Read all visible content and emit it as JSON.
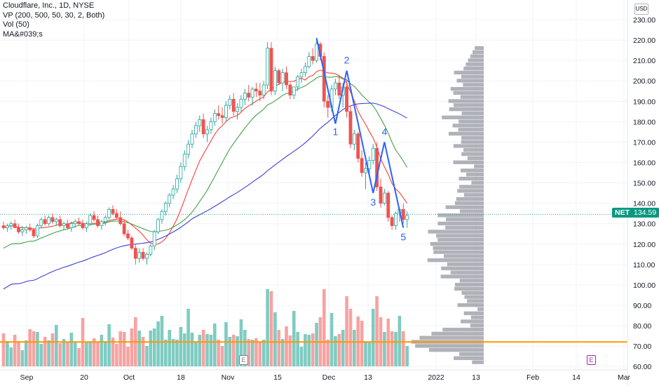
{
  "header": {
    "title": "Cloudflare, Inc., 1D, NYSE",
    "indicators": [
      "VP (200, 500, 50, 30, 2, Both)",
      "Vol (50)",
      "MA&#039;s"
    ]
  },
  "currency": "USD",
  "last_price": {
    "symbol": "NET",
    "value": "134.59",
    "color": "#089981"
  },
  "earnings_badge_label": "E",
  "colors": {
    "up": "#26a69a",
    "down": "#ef5350",
    "ma_fast": "#f44336",
    "ma_mid": "#43a047",
    "ma_slow": "#3f3fd6",
    "wave": "#2962ff",
    "vp": "#9598a1",
    "vol_up": "#7fcbc2",
    "vol_down": "#f6a3a1",
    "poc": "#ff9800"
  },
  "chart_data": {
    "type": "candlestick",
    "title": "Cloudflare, Inc., 1D, NYSE",
    "y_axis": {
      "ticks": [
        60,
        70,
        80,
        90,
        100,
        110,
        120,
        130,
        140,
        150,
        160,
        170,
        180,
        190,
        200,
        210,
        220,
        230
      ],
      "range": [
        58,
        233
      ],
      "unit": "USD"
    },
    "x_axis": {
      "tick_labels": [
        "Sep",
        "20",
        "Oct",
        "18",
        "Nov",
        "15",
        "Dec",
        "13",
        "2022",
        "13",
        "Feb",
        "14",
        "Mar"
      ]
    },
    "candles": [
      [
        129,
        131,
        127,
        128
      ],
      [
        128,
        130,
        126,
        129
      ],
      [
        129,
        131,
        127,
        130
      ],
      [
        130,
        132,
        128,
        128
      ],
      [
        128,
        130,
        125,
        126
      ],
      [
        126,
        129,
        124,
        127
      ],
      [
        127,
        129,
        125,
        128
      ],
      [
        128,
        130,
        126,
        127
      ],
      [
        127,
        128,
        123,
        124
      ],
      [
        124,
        130,
        123,
        129
      ],
      [
        129,
        133,
        128,
        132
      ],
      [
        132,
        134,
        129,
        130
      ],
      [
        130,
        134,
        129,
        133
      ],
      [
        133,
        135,
        130,
        131
      ],
      [
        131,
        133,
        129,
        132
      ],
      [
        132,
        134,
        128,
        129
      ],
      [
        129,
        131,
        127,
        130
      ],
      [
        130,
        132,
        127,
        128
      ],
      [
        128,
        131,
        126,
        130
      ],
      [
        130,
        132,
        128,
        131
      ],
      [
        131,
        133,
        129,
        130
      ],
      [
        130,
        132,
        127,
        128
      ],
      [
        128,
        131,
        126,
        130
      ],
      [
        130,
        135,
        129,
        134
      ],
      [
        134,
        136,
        131,
        132
      ],
      [
        132,
        134,
        128,
        129
      ],
      [
        129,
        132,
        127,
        131
      ],
      [
        131,
        134,
        129,
        133
      ],
      [
        133,
        138,
        132,
        137
      ],
      [
        137,
        139,
        134,
        135
      ],
      [
        135,
        137,
        132,
        133
      ],
      [
        133,
        136,
        129,
        130
      ],
      [
        130,
        132,
        124,
        125
      ],
      [
        125,
        127,
        122,
        123
      ],
      [
        123,
        124,
        117,
        118
      ],
      [
        118,
        120,
        110,
        113
      ],
      [
        113,
        118,
        111,
        116
      ],
      [
        116,
        118,
        112,
        113
      ],
      [
        113,
        116,
        110,
        115
      ],
      [
        115,
        120,
        114,
        119
      ],
      [
        119,
        127,
        117,
        126
      ],
      [
        126,
        133,
        125,
        132
      ],
      [
        132,
        137,
        130,
        136
      ],
      [
        136,
        141,
        134,
        140
      ],
      [
        140,
        145,
        138,
        144
      ],
      [
        144,
        149,
        142,
        147
      ],
      [
        147,
        154,
        145,
        152
      ],
      [
        152,
        160,
        150,
        158
      ],
      [
        158,
        166,
        156,
        164
      ],
      [
        164,
        171,
        162,
        169
      ],
      [
        169,
        176,
        167,
        174
      ],
      [
        174,
        180,
        172,
        178
      ],
      [
        178,
        183,
        175,
        181
      ],
      [
        181,
        184,
        172,
        174
      ],
      [
        174,
        178,
        170,
        176
      ],
      [
        176,
        182,
        174,
        180
      ],
      [
        180,
        186,
        178,
        184
      ],
      [
        184,
        188,
        181,
        183
      ],
      [
        183,
        187,
        179,
        182
      ],
      [
        182,
        190,
        180,
        188
      ],
      [
        188,
        193,
        186,
        191
      ],
      [
        191,
        194,
        183,
        185
      ],
      [
        185,
        189,
        181,
        187
      ],
      [
        187,
        193,
        185,
        191
      ],
      [
        191,
        196,
        188,
        194
      ],
      [
        194,
        198,
        190,
        192
      ],
      [
        192,
        197,
        188,
        196
      ],
      [
        196,
        199,
        192,
        195
      ],
      [
        195,
        199,
        190,
        193
      ],
      [
        193,
        200,
        191,
        198
      ],
      [
        198,
        219,
        196,
        216
      ],
      [
        216,
        219,
        193,
        195
      ],
      [
        195,
        207,
        193,
        205
      ],
      [
        205,
        206,
        198,
        199
      ],
      [
        199,
        206,
        195,
        204
      ],
      [
        204,
        207,
        196,
        198
      ],
      [
        198,
        199,
        191,
        193
      ],
      [
        193,
        197,
        191,
        197
      ],
      [
        197,
        203,
        195,
        202
      ],
      [
        202,
        206,
        199,
        204
      ],
      [
        204,
        209,
        202,
        207
      ],
      [
        207,
        214,
        206,
        212
      ],
      [
        212,
        216,
        208,
        210
      ],
      [
        210,
        221,
        209,
        218
      ],
      [
        218,
        219,
        210,
        212
      ],
      [
        212,
        214,
        187,
        190
      ],
      [
        190,
        193,
        182,
        187
      ],
      [
        187,
        198,
        185,
        196
      ],
      [
        196,
        201,
        193,
        199
      ],
      [
        199,
        203,
        191,
        193
      ],
      [
        193,
        199,
        187,
        197
      ],
      [
        197,
        201,
        182,
        185
      ],
      [
        185,
        188,
        167,
        169
      ],
      [
        169,
        176,
        166,
        174
      ],
      [
        174,
        175,
        160,
        162
      ],
      [
        162,
        166,
        153,
        155
      ],
      [
        155,
        160,
        147,
        157
      ],
      [
        157,
        163,
        154,
        161
      ],
      [
        161,
        169,
        159,
        167
      ],
      [
        167,
        170,
        146,
        148
      ],
      [
        148,
        152,
        138,
        140
      ],
      [
        140,
        147,
        139,
        145
      ],
      [
        145,
        146,
        131,
        133
      ],
      [
        133,
        134,
        127,
        129
      ],
      [
        129,
        136,
        127,
        135
      ],
      [
        135,
        138,
        131,
        137
      ],
      [
        137,
        140,
        130,
        132
      ],
      [
        132,
        136,
        128,
        134
      ]
    ],
    "volume": {
      "up_color": "#7fcbc2",
      "down_color": "#f6a3a1"
    },
    "moving_averages": [
      "ma_fast",
      "ma_mid",
      "ma_slow"
    ],
    "wave_labels": [
      "1",
      "2",
      "3",
      "4",
      "5"
    ],
    "volume_profile": {
      "poc_price": 72
    }
  }
}
